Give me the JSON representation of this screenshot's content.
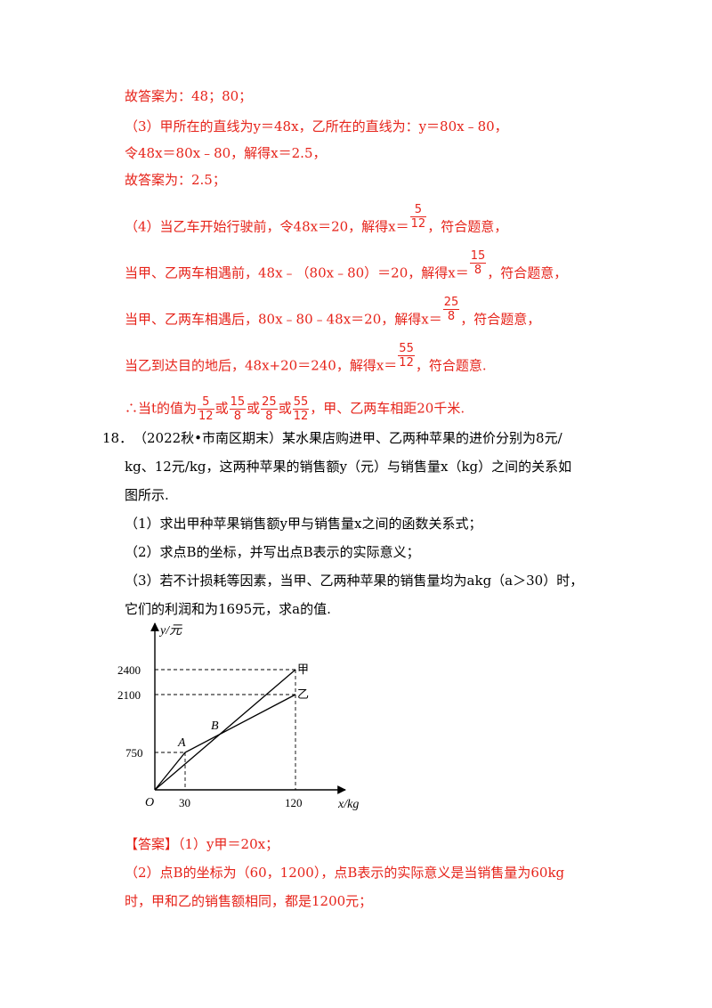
{
  "solution_prev": {
    "ans1": "故答案为：48；80；",
    "p3_line1": "（3）甲所在的直线为y＝48x，乙所在的直线为：y＝80x﹣80，",
    "p3_line2": "令48x＝80x﹣80，解得x＝2.5，",
    "ans2": "故答案为：2.5；",
    "p4_case1": {
      "text": "（4）当乙车开始行驶前，令48x＝20，解得x＝",
      "num": "5",
      "den": "12",
      "tail": "，符合题意，"
    },
    "p4_case2": {
      "text": "当甲、乙两车相遇前，48x﹣（80x﹣80）＝20，解得x＝",
      "num": "15",
      "den": "8",
      "tail": "，符合题意，"
    },
    "p4_case3": {
      "text": "当甲、乙两车相遇后，80x﹣80﹣48x＝20，解得x＝",
      "num": "25",
      "den": "8",
      "tail": "，符合题意，"
    },
    "p4_case4": {
      "text": "当乙到达目的地后，48x+20＝240，解得x＝",
      "num": "55",
      "den": "12",
      "tail": "，符合题意."
    },
    "conclusion": {
      "prefix": "∴当t的值为",
      "fracs": [
        {
          "num": "5",
          "den": "12"
        },
        {
          "num": "15",
          "den": "8"
        },
        {
          "num": "25",
          "den": "8"
        },
        {
          "num": "55",
          "den": "12"
        }
      ],
      "sep": "或",
      "suffix": "，甲、乙两车相距20千米."
    }
  },
  "problem18": {
    "number": "18．",
    "stem_line1": "（2022秋•市南区期末）某水果店购进甲、乙两种苹果的进价分别为8元/",
    "stem_line2": "kg、12元/kg，这两种苹果的销售额y（元）与销售量x（kg）之间的关系如",
    "stem_line3": "图所示.",
    "q1": "（1）求出甲种苹果销售额y甲与销售量x之间的函数关系式；",
    "q2": "（2）求点B的坐标，并写出点B表示的实际意义；",
    "q3_line1": "（3）若不计损耗等因素，当甲、乙两种苹果的销售量均为akg（a＞30）时，",
    "q3_line2": "它们的利润和为1695元，求a的值."
  },
  "graph": {
    "y_axis_label": "y/元",
    "x_axis_label": "x/kg",
    "origin_label": "O",
    "y_ticks": [
      "2400",
      "2100",
      "750"
    ],
    "x_ticks": [
      "30",
      "120"
    ],
    "line_labels": {
      "jia": "甲",
      "yi": "乙"
    },
    "point_labels": {
      "A": "A",
      "B": "B"
    }
  },
  "answer": {
    "tag": "【答案】",
    "a1": "（1）y甲＝20x；",
    "a2_line1": "（2）点B的坐标为（60，1200），点B表示的实际意义是当销售量为60kg",
    "a2_line2": "时，甲和乙的销售额相同，都是1200元；"
  },
  "colors": {
    "solution_red": "#e6231a",
    "text_black": "#000000"
  }
}
